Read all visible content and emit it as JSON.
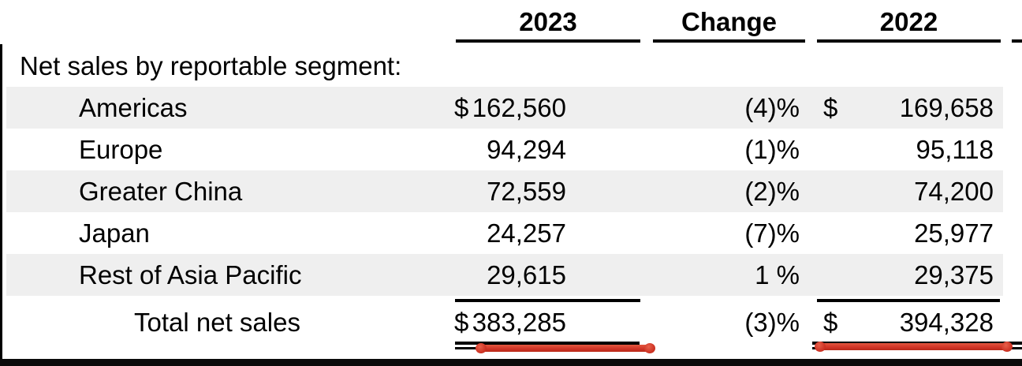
{
  "table": {
    "section_label": "Net sales by reportable segment:",
    "column_headers": {
      "y2023": "2023",
      "change": "Change",
      "y2022": "2022"
    },
    "rows": [
      {
        "label": "Americas",
        "dollar_2023": "$",
        "sales_2023": "162,560",
        "change": "(4)%",
        "dollar_2022": "$",
        "sales_2022": "169,658"
      },
      {
        "label": "Europe",
        "sales_2023": "94,294",
        "change": "(1)%",
        "sales_2022": "95,118"
      },
      {
        "label": "Greater China",
        "sales_2023": "72,559",
        "change": "(2)%",
        "sales_2022": "74,200"
      },
      {
        "label": "Japan",
        "sales_2023": "24,257",
        "change": "(7)%",
        "sales_2022": "25,977"
      },
      {
        "label": "Rest of Asia Pacific",
        "sales_2023": "29,615",
        "change": "1 %",
        "sales_2022": "29,375"
      }
    ],
    "total": {
      "label": "Total net sales",
      "dollar_2023": "$",
      "sales_2023": "383,285",
      "change": "(3)%",
      "dollar_2022": "$",
      "sales_2022": "394,328"
    }
  },
  "colors": {
    "row_shade": "#efefef",
    "text": "#000000",
    "rule": "#000000",
    "annotation_red": "#d23527",
    "page_edge": "#0b0b0b"
  }
}
